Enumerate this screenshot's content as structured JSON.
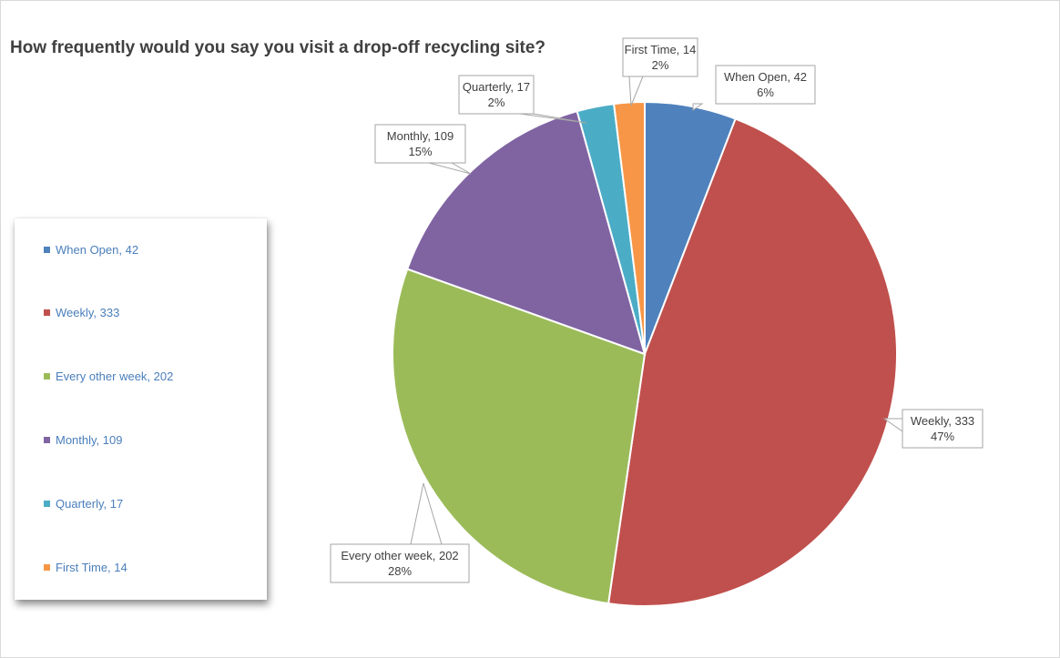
{
  "chart_data": {
    "type": "pie",
    "title": "How frequently would you say you visit a drop-off recycling site?",
    "slices": [
      {
        "label": "When Open",
        "value": 42,
        "percent": "6%",
        "color": "#4f81bd"
      },
      {
        "label": "Weekly",
        "value": 333,
        "percent": "47%",
        "color": "#c0504d"
      },
      {
        "label": "Every other week",
        "value": 202,
        "percent": "28%",
        "color": "#9bbb59"
      },
      {
        "label": "Monthly",
        "value": 109,
        "percent": "15%",
        "color": "#8064a2"
      },
      {
        "label": "Quarterly",
        "value": 17,
        "percent": "2%",
        "color": "#4bacc6"
      },
      {
        "label": "First Time",
        "value": 14,
        "percent": "2%",
        "color": "#f79646"
      }
    ],
    "legend": {
      "placement": "left",
      "entries": [
        "When Open, 42",
        "Weekly, 333",
        "Every other week, 202",
        "Monthly, 109",
        "Quarterly, 17",
        "First Time, 14"
      ]
    },
    "data_labels": [
      {
        "line1": "When Open, 42",
        "line2": "6%"
      },
      {
        "line1": "Weekly, 333",
        "line2": "47%"
      },
      {
        "line1": "Every other week, 202",
        "line2": "28%"
      },
      {
        "line1": "Monthly, 109",
        "line2": "15%"
      },
      {
        "line1": "Quarterly, 17",
        "line2": "2%"
      },
      {
        "line1": "First Time, 14",
        "line2": "2%"
      }
    ]
  }
}
